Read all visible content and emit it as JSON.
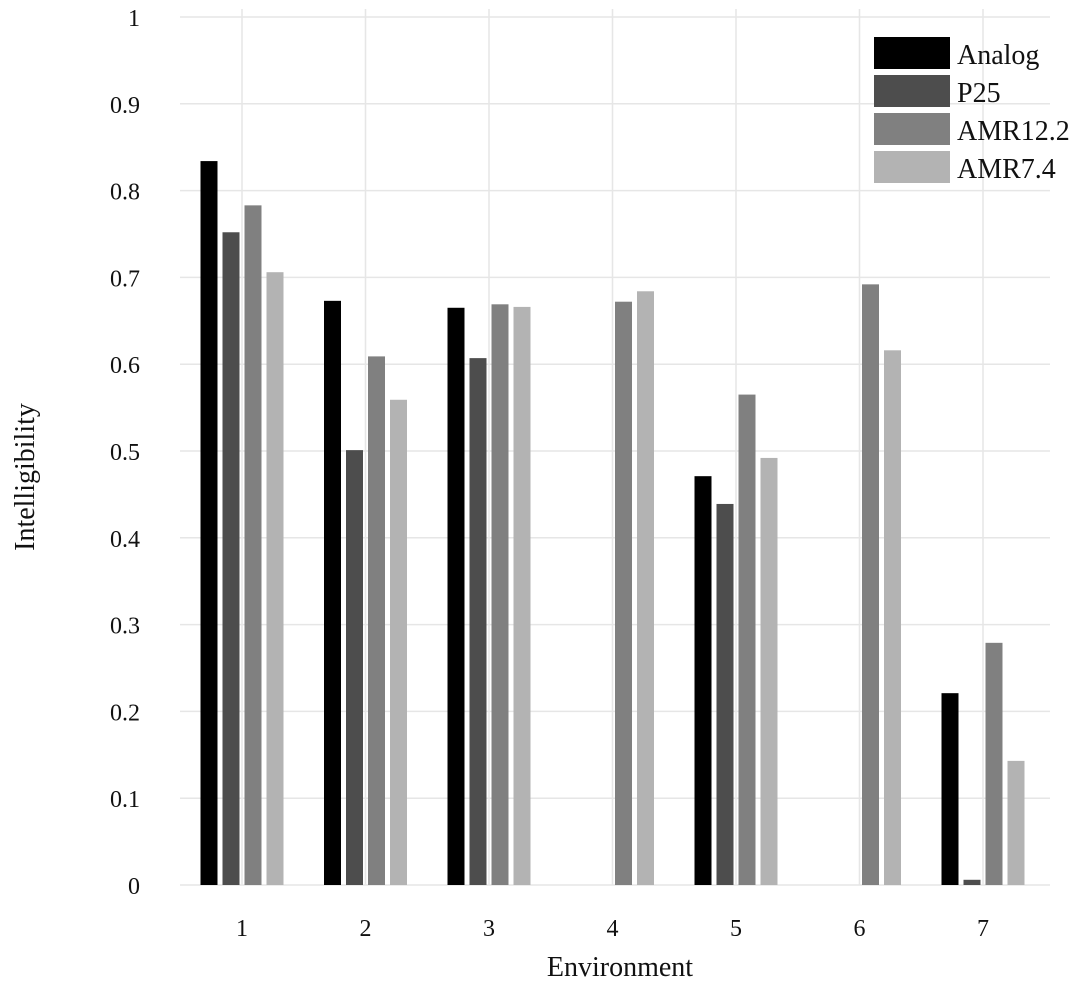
{
  "chart_data": {
    "type": "bar",
    "title": "",
    "xlabel": "Environment",
    "ylabel": "Intelligibility",
    "categories": [
      "1",
      "2",
      "3",
      "4",
      "5",
      "6",
      "7"
    ],
    "y_ticks": [
      "0",
      "0.1",
      "0.2",
      "0.3",
      "0.4",
      "0.5",
      "0.6",
      "0.7",
      "0.8",
      "0.9",
      "1"
    ],
    "ylim": [
      0,
      1
    ],
    "grid": true,
    "legend_position": "top-right",
    "series": [
      {
        "name": "Analog",
        "color": "#000000",
        "values": [
          0.834,
          0.673,
          0.665,
          null,
          0.471,
          null,
          0.221
        ]
      },
      {
        "name": "P25",
        "color": "#4d4d4d",
        "values": [
          0.752,
          0.501,
          0.607,
          null,
          0.439,
          null,
          0.006
        ]
      },
      {
        "name": "AMR12.2",
        "color": "#808080",
        "values": [
          0.783,
          0.609,
          0.669,
          0.672,
          0.565,
          0.692,
          0.279
        ]
      },
      {
        "name": "AMR7.4",
        "color": "#b3b3b3",
        "values": [
          0.706,
          0.559,
          0.666,
          0.684,
          0.492,
          0.616,
          0.143
        ]
      }
    ]
  }
}
